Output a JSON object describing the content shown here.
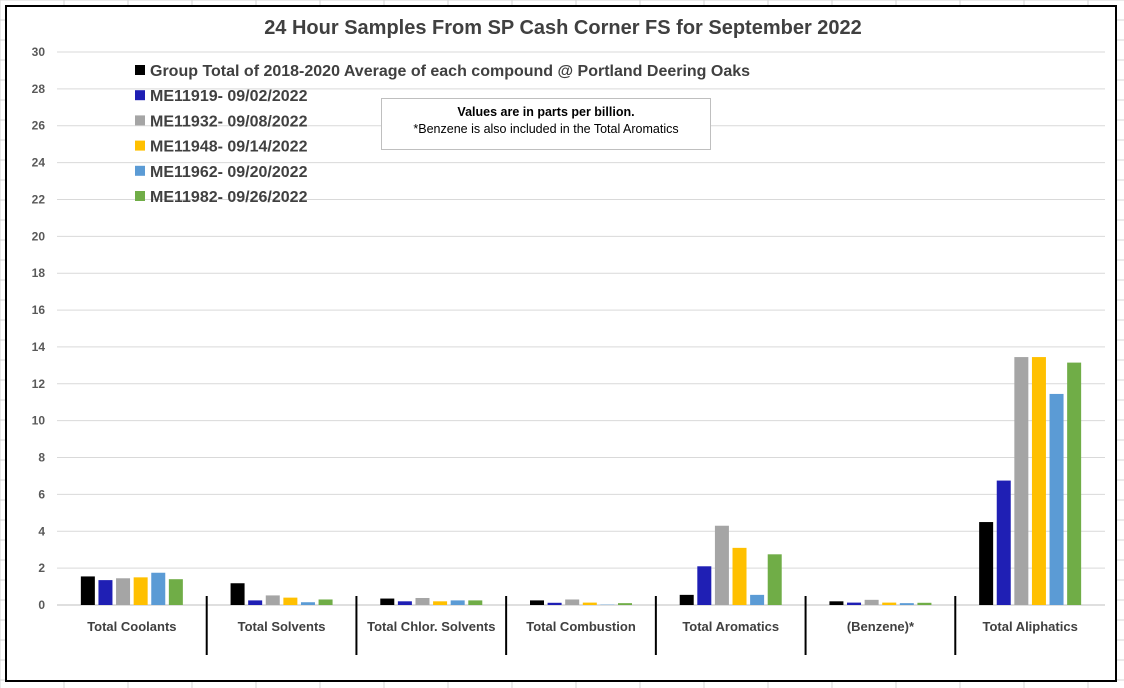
{
  "chart_data": {
    "type": "bar",
    "title": "24 Hour Samples From SP Cash Corner FS for September 2022",
    "categories": [
      "Total Coolants",
      "Total Solvents",
      "Total Chlor. Solvents",
      "Total Combustion",
      "Total Aromatics",
      "(Benzene)*",
      "Total Aliphatics"
    ],
    "ylim": [
      0,
      30
    ],
    "yticks": [
      0,
      2,
      4,
      6,
      8,
      10,
      12,
      14,
      16,
      18,
      20,
      22,
      24,
      26,
      28,
      30
    ],
    "grid": true,
    "legend_position": "top-left",
    "series": [
      {
        "name": "Group Total of 2018-2020 Average of each compound @ Portland Deering Oaks",
        "color": "#000000",
        "values": [
          1.55,
          1.18,
          0.35,
          0.25,
          0.55,
          0.2,
          4.5
        ]
      },
      {
        "name": "ME11919- 09/02/2022",
        "color": "#1f1fb4",
        "values": [
          1.35,
          0.25,
          0.2,
          0.12,
          2.1,
          0.13,
          6.75
        ]
      },
      {
        "name": "ME11932- 09/08/2022",
        "color": "#a5a5a5",
        "values": [
          1.45,
          0.52,
          0.38,
          0.3,
          4.3,
          0.28,
          13.45
        ]
      },
      {
        "name": "ME11948- 09/14/2022",
        "color": "#ffc000",
        "values": [
          1.5,
          0.4,
          0.2,
          0.13,
          3.1,
          0.13,
          13.45
        ]
      },
      {
        "name": "ME11962- 09/20/2022",
        "color": "#5b9bd5",
        "values": [
          1.75,
          0.15,
          0.25,
          0.02,
          0.55,
          0.1,
          11.45
        ]
      },
      {
        "name": "ME11982- 09/26/2022",
        "color": "#70ad47",
        "values": [
          1.4,
          0.3,
          0.25,
          0.1,
          2.75,
          0.12,
          13.15
        ]
      }
    ]
  },
  "note": {
    "line1": "Values are in parts per billion.",
    "line2": "*Benzene is also included in the Total Aromatics"
  }
}
